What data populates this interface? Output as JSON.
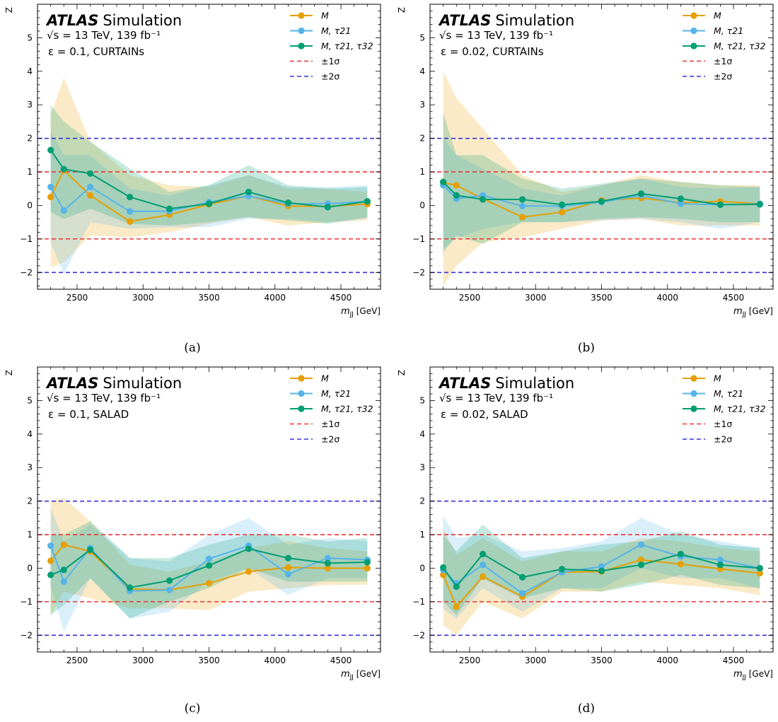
{
  "chart_data": [
    {
      "type": "line",
      "panel_label": "(a)",
      "experiment": "ATLAS",
      "title_suffix": "Simulation",
      "energy_text": "√s = 13 TeV, 139 fb⁻¹",
      "epsilon_text": "ε = 0.1, CURTAINs",
      "xlabel": "m_JJ [GeV]",
      "ylabel": "Z",
      "xlim": [
        2200,
        4800
      ],
      "ylim": [
        -2.5,
        6.0
      ],
      "x_ticks": [
        2500,
        3000,
        3500,
        4000,
        4500
      ],
      "y_ticks": [
        -2,
        -1,
        0,
        1,
        2,
        3,
        4,
        5
      ],
      "x": [
        2300,
        2400,
        2600,
        2900,
        3200,
        3500,
        3800,
        4100,
        4400,
        4700
      ],
      "series": [
        {
          "name": "M",
          "color": "#E69F00",
          "values": [
            0.25,
            1.05,
            0.3,
            -0.48,
            -0.28,
            0.03,
            0.28,
            -0.02,
            -0.03,
            0.04
          ],
          "band_upper": [
            2.7,
            3.8,
            1.9,
            0.9,
            0.6,
            0.55,
            0.9,
            0.5,
            0.5,
            0.4
          ],
          "band_lower": [
            -1.85,
            -1.7,
            -0.9,
            -0.95,
            -0.8,
            -0.55,
            -0.35,
            -0.6,
            -0.5,
            -0.45
          ]
        },
        {
          "name": "M, τ21",
          "color": "#56B4E9",
          "values": [
            0.55,
            -0.15,
            0.55,
            -0.18,
            -0.17,
            0.1,
            0.28,
            0.05,
            0.05,
            0.12
          ],
          "band_upper": [
            2.2,
            1.5,
            1.5,
            0.5,
            0.3,
            0.6,
            0.9,
            0.55,
            0.55,
            0.6
          ],
          "band_lower": [
            -1.1,
            -2.05,
            -0.5,
            -0.7,
            -0.65,
            -0.65,
            -0.4,
            -0.4,
            -0.5,
            -0.4
          ]
        },
        {
          "name": "M, τ21, τ32",
          "color": "#009E73",
          "values": [
            1.65,
            1.08,
            0.95,
            0.25,
            -0.1,
            0.05,
            0.4,
            0.08,
            -0.05,
            0.12
          ],
          "band_upper": [
            3.0,
            2.5,
            1.9,
            1.1,
            0.4,
            0.6,
            1.2,
            0.6,
            0.5,
            0.55
          ],
          "band_lower": [
            -0.2,
            -0.4,
            -0.1,
            -0.55,
            -0.6,
            -0.5,
            -0.35,
            -0.45,
            -0.55,
            -0.35
          ]
        }
      ],
      "ref_lines": [
        {
          "name": "±1σ",
          "color": "#EE3333",
          "values": [
            1,
            -1
          ]
        },
        {
          "name": "±2σ",
          "color": "#3333DD",
          "values": [
            2,
            -2
          ]
        }
      ]
    },
    {
      "type": "line",
      "panel_label": "(b)",
      "experiment": "ATLAS",
      "title_suffix": "Simulation",
      "energy_text": "√s = 13 TeV, 139 fb⁻¹",
      "epsilon_text": "ε = 0.02, CURTAINs",
      "xlabel": "m_JJ [GeV]",
      "ylabel": "Z",
      "xlim": [
        2200,
        4800
      ],
      "ylim": [
        -2.5,
        6.0
      ],
      "x_ticks": [
        2500,
        3000,
        3500,
        4000,
        4500
      ],
      "y_ticks": [
        -2,
        -1,
        0,
        1,
        2,
        3,
        4,
        5
      ],
      "x": [
        2300,
        2400,
        2600,
        2900,
        3200,
        3500,
        3800,
        4100,
        4400,
        4700
      ],
      "series": [
        {
          "name": "M",
          "color": "#E69F00",
          "values": [
            0.68,
            0.6,
            0.2,
            -0.35,
            -0.2,
            0.15,
            0.22,
            0.08,
            0.12,
            0.05
          ],
          "band_upper": [
            4.0,
            3.2,
            2.3,
            0.9,
            0.4,
            0.6,
            0.9,
            0.7,
            0.6,
            0.6
          ],
          "band_lower": [
            -2.4,
            -1.8,
            -1.1,
            -0.95,
            -0.7,
            -0.45,
            -0.4,
            -0.6,
            -0.6,
            -0.6
          ]
        },
        {
          "name": "M, τ21",
          "color": "#56B4E9",
          "values": [
            0.6,
            0.2,
            0.3,
            -0.02,
            -0.02,
            0.1,
            0.3,
            0.05,
            0.02,
            0.05
          ],
          "band_upper": [
            2.0,
            1.5,
            1.1,
            0.5,
            0.3,
            0.6,
            0.8,
            0.55,
            0.5,
            0.55
          ],
          "band_lower": [
            -1.3,
            -1.0,
            -0.7,
            -0.5,
            -0.5,
            -0.45,
            -0.4,
            -0.5,
            -0.7,
            -0.5
          ]
        },
        {
          "name": "M, τ21, τ32",
          "color": "#009E73",
          "values": [
            0.7,
            0.3,
            0.18,
            0.18,
            0.02,
            0.12,
            0.35,
            0.2,
            0.02,
            0.03
          ],
          "band_upper": [
            2.75,
            1.5,
            1.5,
            0.8,
            0.5,
            0.65,
            0.8,
            0.7,
            0.6,
            0.55
          ],
          "band_lower": [
            -1.4,
            -0.9,
            -1.15,
            -0.5,
            -0.5,
            -0.4,
            -0.35,
            -0.4,
            -0.5,
            -0.5
          ]
        }
      ],
      "ref_lines": [
        {
          "name": "±1σ",
          "color": "#EE3333",
          "values": [
            1,
            -1
          ]
        },
        {
          "name": "±2σ",
          "color": "#3333DD",
          "values": [
            2,
            -2
          ]
        }
      ]
    },
    {
      "type": "line",
      "panel_label": "(c)",
      "experiment": "ATLAS",
      "title_suffix": "Simulation",
      "energy_text": "√s = 13 TeV, 139 fb⁻¹",
      "epsilon_text": "ε = 0.1, SALAD",
      "xlabel": "m_JJ [GeV]",
      "ylabel": "Z",
      "xlim": [
        2200,
        4800
      ],
      "ylim": [
        -2.5,
        6.0
      ],
      "x_ticks": [
        2500,
        3000,
        3500,
        4000,
        4500
      ],
      "y_ticks": [
        -2,
        -1,
        0,
        1,
        2,
        3,
        4,
        5
      ],
      "x": [
        2300,
        2400,
        2600,
        2900,
        3200,
        3500,
        3800,
        4100,
        4400,
        4700
      ],
      "series": [
        {
          "name": "M",
          "color": "#E69F00",
          "values": [
            0.22,
            0.7,
            0.5,
            -0.62,
            -0.65,
            -0.45,
            -0.1,
            0.02,
            0.0,
            0.0
          ],
          "band_upper": [
            2.0,
            2.1,
            1.4,
            0.1,
            -0.1,
            0.2,
            0.6,
            0.8,
            0.6,
            0.5
          ],
          "band_lower": [
            -1.4,
            -0.7,
            -0.9,
            -1.2,
            -1.2,
            -1.25,
            -0.7,
            -0.6,
            -0.5,
            -0.5
          ]
        },
        {
          "name": "M, τ21",
          "color": "#56B4E9",
          "values": [
            0.67,
            -0.4,
            0.6,
            -0.68,
            -0.65,
            0.28,
            0.67,
            -0.18,
            0.3,
            0.25
          ],
          "band_upper": [
            1.8,
            0.8,
            1.3,
            0.3,
            0.2,
            1.0,
            1.5,
            0.7,
            0.9,
            0.8
          ],
          "band_lower": [
            -0.5,
            -1.9,
            -0.3,
            -1.5,
            -1.3,
            -0.4,
            0.0,
            -0.8,
            -0.3,
            -0.3
          ]
        },
        {
          "name": "M, τ21, τ32",
          "color": "#009E73",
          "values": [
            -0.2,
            -0.05,
            0.55,
            -0.58,
            -0.37,
            0.08,
            0.58,
            0.3,
            0.15,
            0.18
          ],
          "band_upper": [
            1.0,
            1.0,
            1.4,
            0.3,
            0.3,
            0.7,
            1.0,
            1.0,
            0.8,
            0.9
          ],
          "band_lower": [
            -1.4,
            -1.1,
            -0.3,
            -1.5,
            -1.0,
            -0.6,
            0.0,
            -0.4,
            -0.4,
            -0.4
          ]
        }
      ],
      "ref_lines": [
        {
          "name": "±1σ",
          "color": "#EE3333",
          "values": [
            1,
            -1
          ]
        },
        {
          "name": "±2σ",
          "color": "#3333DD",
          "values": [
            2,
            -2
          ]
        }
      ]
    },
    {
      "type": "line",
      "panel_label": "(d)",
      "experiment": "ATLAS",
      "title_suffix": "Simulation",
      "energy_text": "√s = 13 TeV, 139 fb⁻¹",
      "epsilon_text": "ε = 0.02, SALAD",
      "xlabel": "m_JJ [GeV]",
      "ylabel": "Z",
      "xlim": [
        2200,
        4800
      ],
      "ylim": [
        -2.5,
        6.0
      ],
      "x_ticks": [
        2500,
        3000,
        3500,
        4000,
        4500
      ],
      "y_ticks": [
        -2,
        -1,
        0,
        1,
        2,
        3,
        4,
        5
      ],
      "x": [
        2300,
        2400,
        2600,
        2900,
        3200,
        3500,
        3800,
        4100,
        4400,
        4700
      ],
      "series": [
        {
          "name": "M",
          "color": "#E69F00",
          "values": [
            -0.2,
            -1.15,
            -0.25,
            -0.85,
            -0.12,
            -0.1,
            0.25,
            0.12,
            -0.02,
            -0.15
          ],
          "band_upper": [
            1.2,
            0.4,
            0.9,
            0.2,
            0.5,
            0.5,
            0.9,
            0.8,
            0.6,
            0.5
          ],
          "band_lower": [
            -1.7,
            -2.0,
            -1.0,
            -1.5,
            -0.7,
            -0.7,
            -0.4,
            -0.5,
            -0.6,
            -0.8
          ]
        },
        {
          "name": "M, τ21",
          "color": "#56B4E9",
          "values": [
            -0.05,
            -0.45,
            0.1,
            -0.75,
            -0.12,
            0.05,
            0.7,
            0.35,
            0.25,
            0.0
          ],
          "band_upper": [
            1.55,
            0.9,
            1.0,
            0.5,
            0.6,
            0.8,
            1.5,
            1.0,
            0.8,
            0.6
          ],
          "band_lower": [
            -1.2,
            -1.5,
            -0.6,
            -1.3,
            -0.6,
            -0.6,
            0.0,
            -0.3,
            -0.3,
            -0.6
          ]
        },
        {
          "name": "M, τ21, τ32",
          "color": "#009E73",
          "values": [
            0.02,
            -0.55,
            0.42,
            -0.27,
            -0.03,
            -0.08,
            0.1,
            0.42,
            0.1,
            0.0
          ],
          "band_upper": [
            1.0,
            0.5,
            1.3,
            0.3,
            0.5,
            0.7,
            0.8,
            1.1,
            0.7,
            0.6
          ],
          "band_lower": [
            -1.0,
            -1.4,
            -0.3,
            -0.9,
            -0.6,
            -0.7,
            -0.5,
            -0.2,
            -0.5,
            -0.6
          ]
        }
      ],
      "ref_lines": [
        {
          "name": "±1σ",
          "color": "#EE3333",
          "values": [
            1,
            -1
          ]
        },
        {
          "name": "±2σ",
          "color": "#3333DD",
          "values": [
            2,
            -2
          ]
        }
      ]
    }
  ]
}
